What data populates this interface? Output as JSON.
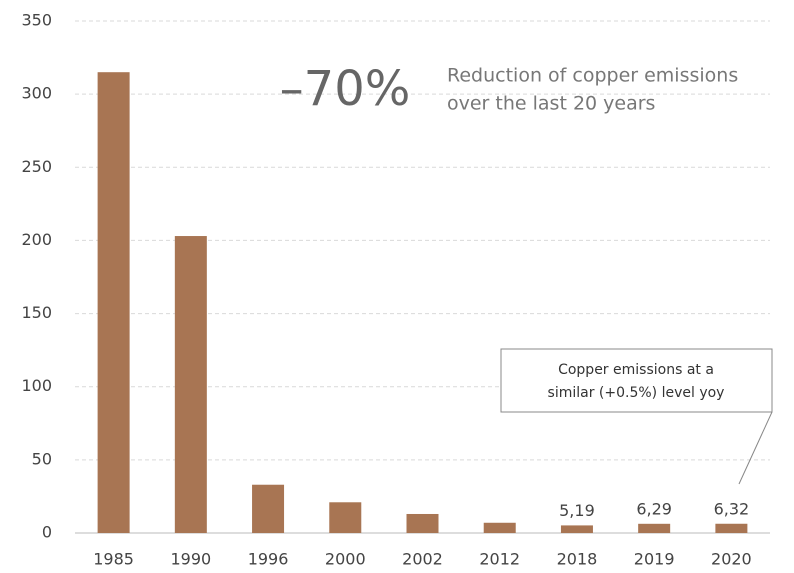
{
  "chart_data": {
    "type": "bar",
    "categories": [
      "1985",
      "1990",
      "1996",
      "2000",
      "2002",
      "2012",
      "2018",
      "2019",
      "2020"
    ],
    "values": [
      315,
      203,
      33,
      21,
      13,
      7,
      5.19,
      6.29,
      6.32
    ],
    "value_labels": [
      null,
      null,
      null,
      null,
      null,
      null,
      "5,19",
      "6,29",
      "6,32"
    ],
    "color": "#a87553",
    "ylim": [
      0,
      350
    ],
    "yticks": [
      0,
      50,
      100,
      150,
      200,
      250,
      300,
      350
    ],
    "grid": true,
    "annotations": {
      "headline": "–70%",
      "description": [
        "Reduction of copper emissions",
        "over the last 20 years"
      ],
      "callout": [
        "Copper emissions at a",
        "similar (+0.5%) level yoy"
      ]
    }
  }
}
